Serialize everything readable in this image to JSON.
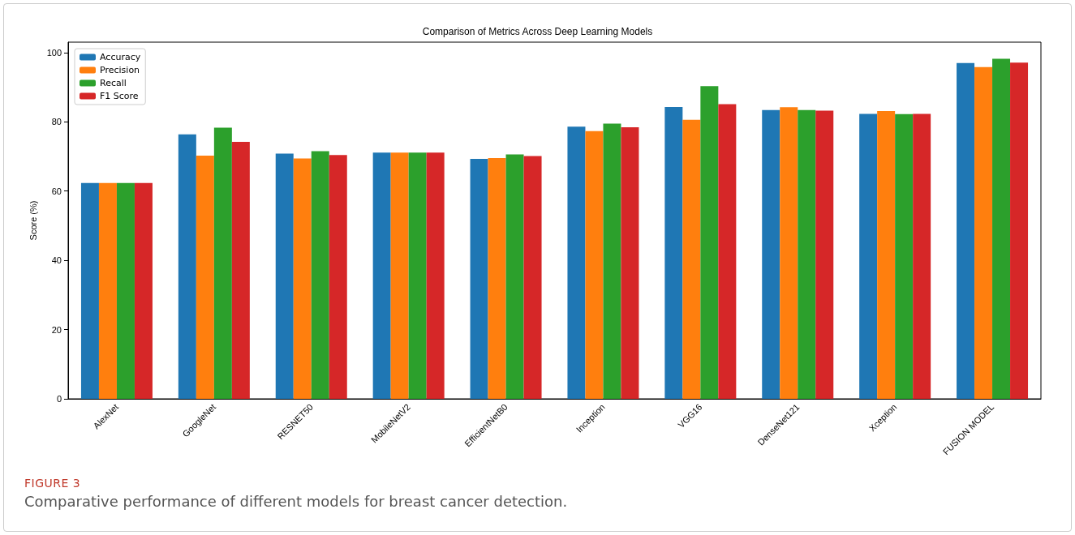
{
  "chart_data": {
    "type": "bar",
    "title": "Comparison of Metrics Across Deep Learning Models",
    "ylabel": "Score (%)",
    "categories": [
      "AlexNet",
      "GoogleNet",
      "RESNET50",
      "MobileNetV2",
      "EfficientNetB0",
      "Inception",
      "VGG16",
      "DenseNet121",
      "Xception",
      "FUSION MODEL"
    ],
    "series": [
      {
        "name": "Accuracy",
        "color": "#1f77b4",
        "values": [
          62.3,
          76.4,
          70.8,
          71.1,
          69.3,
          78.6,
          84.3,
          83.4,
          82.3,
          97.0
        ]
      },
      {
        "name": "Precision",
        "color": "#ff7f0e",
        "values": [
          62.3,
          70.2,
          69.4,
          71.1,
          69.5,
          77.3,
          80.6,
          84.2,
          83.1,
          95.8
        ]
      },
      {
        "name": "Recall",
        "color": "#2ca02c",
        "values": [
          62.3,
          78.3,
          71.5,
          71.1,
          70.6,
          79.5,
          90.3,
          83.4,
          82.2,
          98.2
        ]
      },
      {
        "name": "F1 Score",
        "color": "#d62728",
        "values": [
          62.3,
          74.2,
          70.4,
          71.1,
          70.1,
          78.4,
          85.1,
          83.2,
          82.3,
          97.1
        ]
      }
    ],
    "ylim": [
      0,
      103
    ],
    "yticks": [
      0,
      20,
      40,
      60,
      80,
      100
    ],
    "grid": false,
    "legend": "top left",
    "annotations": [
      "FIGURE 3",
      "Comparative performance of different models for breast cancer detection."
    ]
  }
}
